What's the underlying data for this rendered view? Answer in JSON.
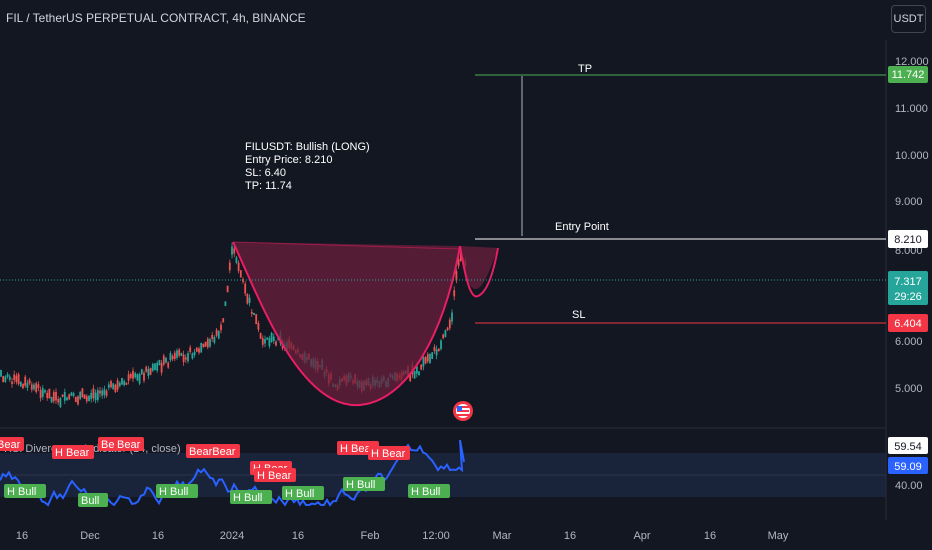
{
  "header": {
    "title": "FIL / TetherUS PERPETUAL CONTRACT, 4h, BINANCE"
  },
  "toolbar": {
    "currency": "USDT"
  },
  "price_axis": {
    "ticks": [
      "12.000",
      "11.000",
      "10.000",
      "9.000",
      "8.000",
      "6.000",
      "5.000"
    ]
  },
  "price_tags": {
    "tp": "11.742",
    "entry": "8.210",
    "last": "7.317",
    "countdown": "29:26",
    "sl": "6.404"
  },
  "levels": {
    "tp_label": "TP",
    "entry_label": "Entry Point",
    "sl_label": "SL"
  },
  "trade_note": {
    "line1": "FILUSDT: Bullish (LONG)",
    "line2": "Entry Price: 8.210",
    "line3": "SL: 6.40",
    "line4": "TP: 11.74"
  },
  "indicator": {
    "title": "RSI Divergence Indicator (14, close)",
    "axis_ticks": [
      "40.00"
    ],
    "value_a": "59.54",
    "value_b": "59.09",
    "bear_labels": [
      "Bear",
      "H Bear",
      "Bear",
      "Bear",
      "BearBear",
      "H Bear",
      "H Bear",
      "H Bear",
      "H Bear"
    ],
    "bull_labels": [
      "H Bull",
      "Bull",
      "H Bull",
      "H Bull",
      "H Bull",
      "H Bull",
      "H Bull"
    ]
  },
  "time_axis": {
    "ticks": [
      "16",
      "Dec",
      "16",
      "2024",
      "16",
      "Feb",
      "12:00",
      "Mar",
      "16",
      "Apr",
      "16",
      "May"
    ]
  },
  "colors": {
    "background": "#131722",
    "tp_line": "#4caf50",
    "sl_line": "#f23645",
    "cup_fill": "#6b1f3c",
    "cup_stroke": "#e91e63",
    "rsi_line": "#2962ff",
    "bull_tag": "#4caf50",
    "bear_tag": "#f23645"
  },
  "icons": {
    "flag": "us-flag-icon"
  }
}
